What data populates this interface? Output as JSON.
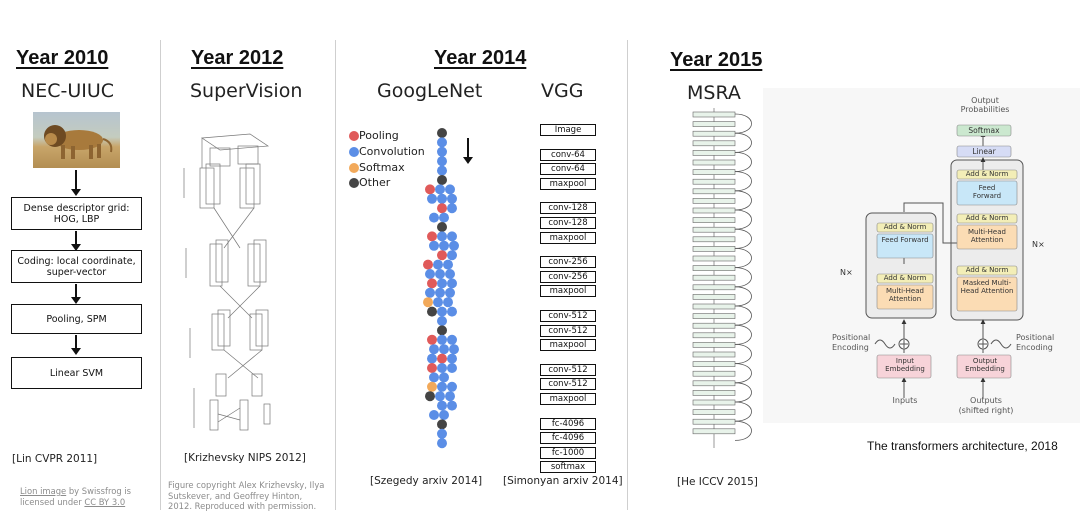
{
  "col2010": {
    "year": "Year 2010",
    "title": "NEC-UIUC",
    "steps": [
      "Dense descriptor grid: HOG, LBP",
      "Coding: local coordinate, super-vector",
      "Pooling, SPM",
      "Linear SVM"
    ],
    "citation": "[Lin CVPR 2011]",
    "credit_link1": "Lion image",
    "credit_mid": " by Swissfrog is licensed under ",
    "credit_link2": "CC BY 3.0"
  },
  "col2012": {
    "year": "Year 2012",
    "title": "SuperVision",
    "citation": "[Krizhevsky NIPS 2012]",
    "credit": "Figure copyright Alex Krizhevsky, Ilya Sutskever, and Geoffrey Hinton, 2012. Reproduced with permission."
  },
  "col2014": {
    "year": "Year 2014",
    "googlenet_title": "GoogLeNet",
    "vgg_title": "VGG",
    "legend": [
      "Pooling",
      "Convolution",
      "Softmax",
      "Other"
    ],
    "legend_colors": [
      "#e05a5a",
      "#5b8ee6",
      "#f2a95a",
      "#444444"
    ],
    "vgg_layers": [
      "Image",
      "conv-64",
      "conv-64",
      "maxpool",
      "conv-128",
      "conv-128",
      "maxpool",
      "conv-256",
      "conv-256",
      "maxpool",
      "conv-512",
      "conv-512",
      "maxpool",
      "conv-512",
      "conv-512",
      "maxpool",
      "fc-4096",
      "fc-4096",
      "fc-1000",
      "softmax"
    ],
    "googlenet_citation": "[Szegedy arxiv 2014]",
    "vgg_citation": "[Simonyan arxiv 2014]"
  },
  "col2015": {
    "year": "Year 2015",
    "title": "MSRA",
    "citation": "[He ICCV 2015]"
  },
  "transformer": {
    "output_label": "Output Probabilities",
    "softmax": "Softmax",
    "linear": "Linear",
    "add_norm": "Add & Norm",
    "feed_forward": "Feed Forward",
    "multi_head": "Multi-Head Attention",
    "masked_multi_head": "Masked Multi-Head Attention",
    "nx": "N×",
    "positional_encoding": "Positional Encoding",
    "input_embedding": "Input Embedding",
    "output_embedding": "Output Embedding",
    "inputs": "Inputs",
    "outputs": "Outputs (shifted right)",
    "caption": "The transformers architecture, 2018"
  }
}
